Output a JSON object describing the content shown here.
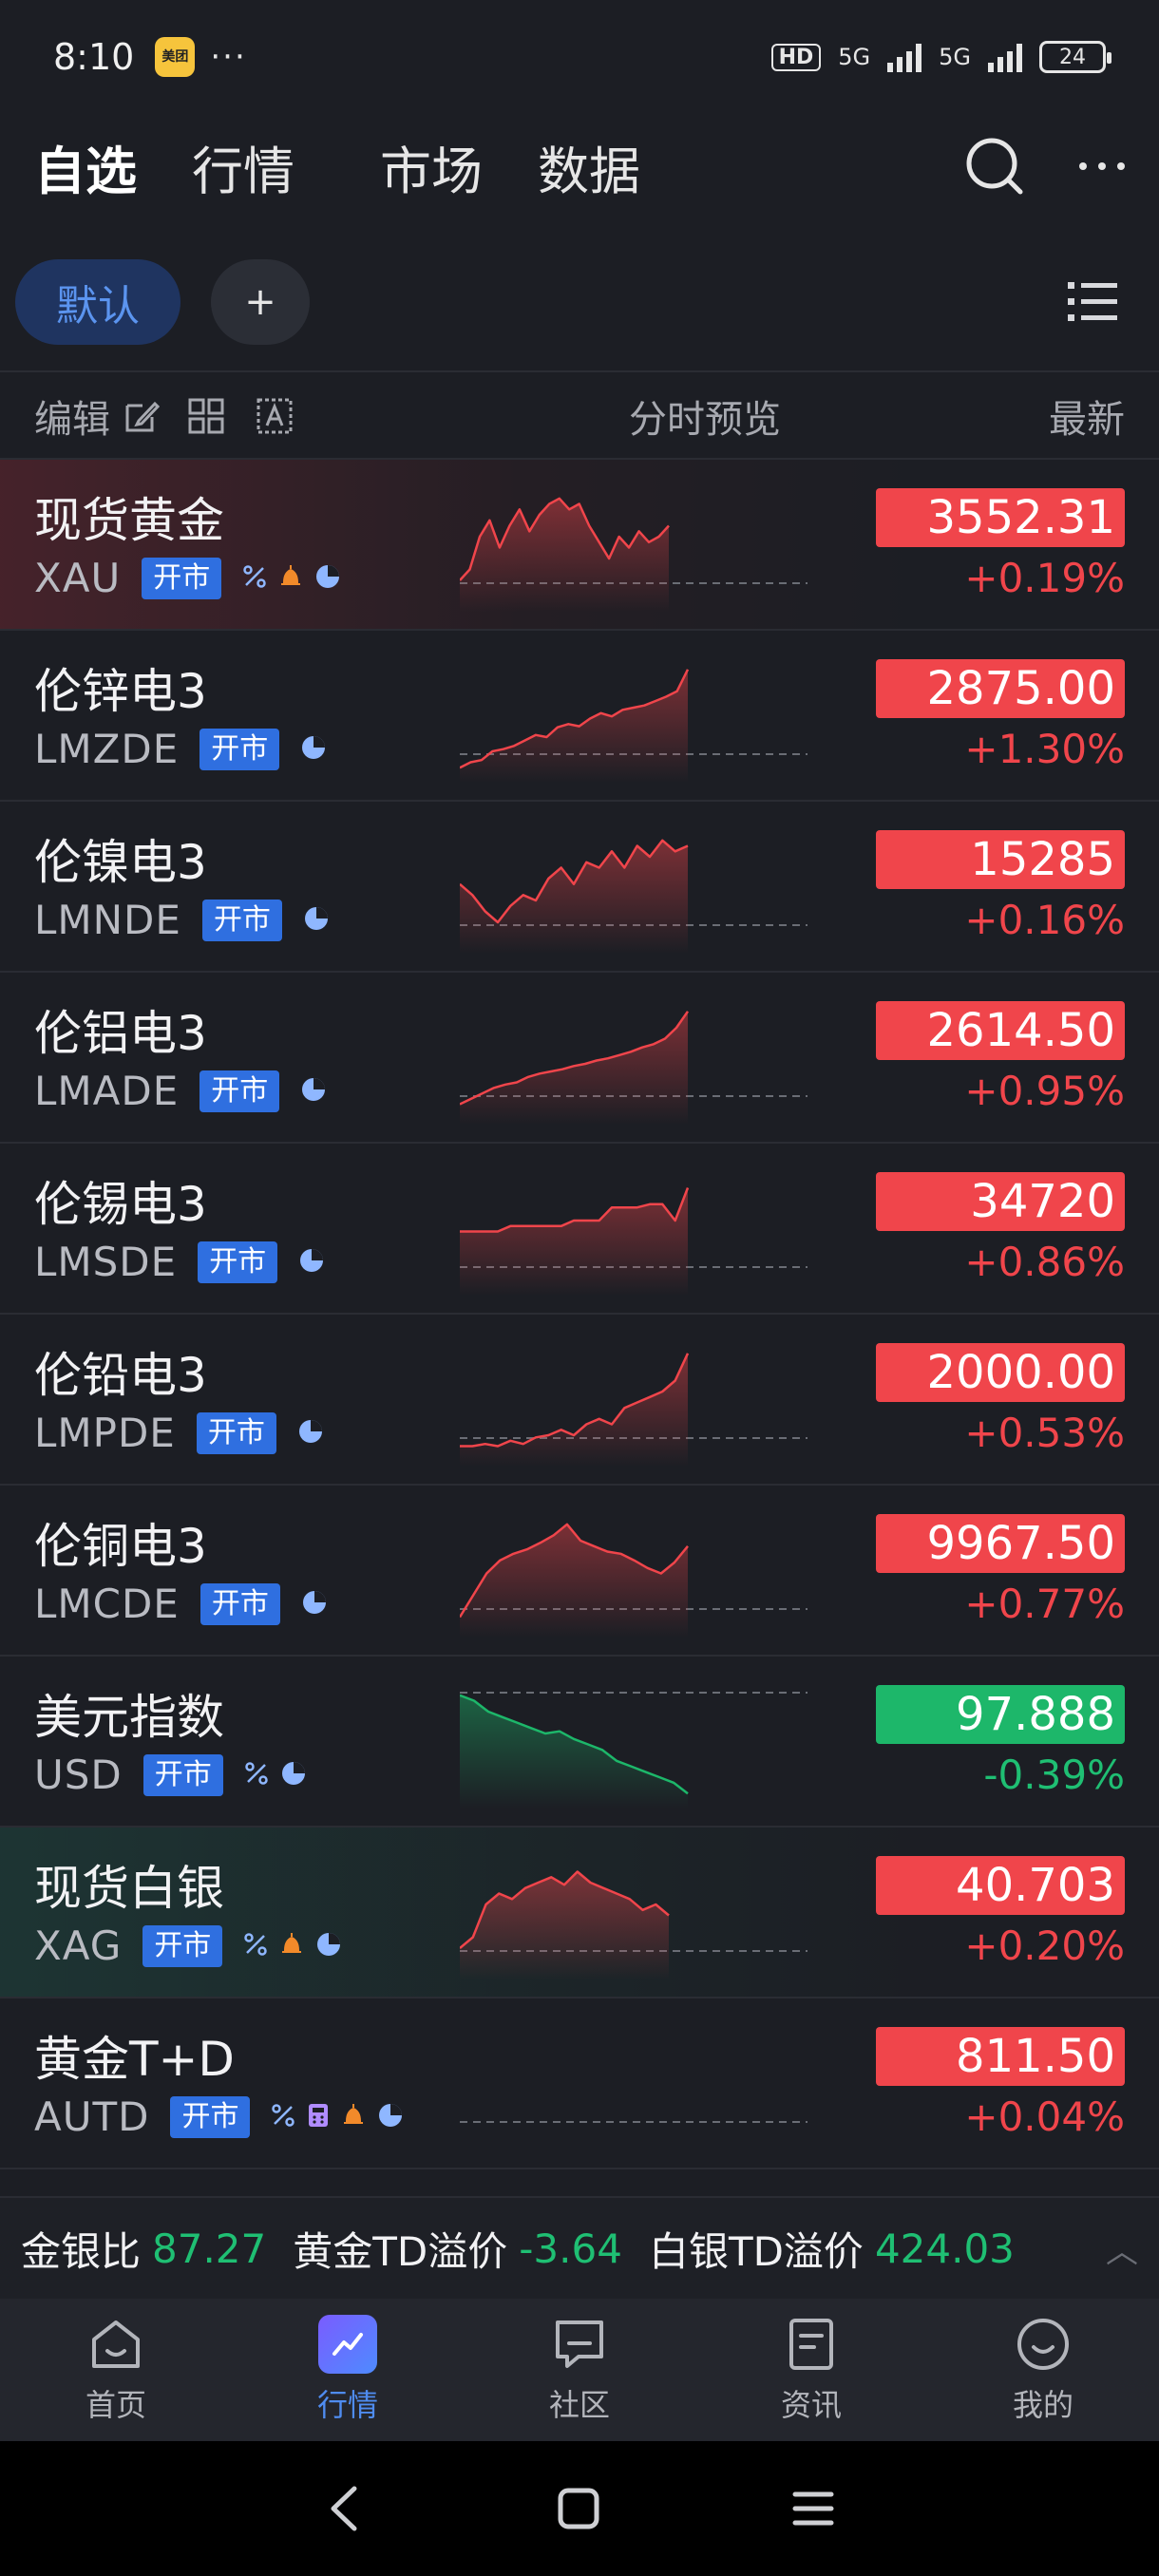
{
  "status": {
    "time": "8:10",
    "app_badge": "美团",
    "dots": "···",
    "hd": "HD",
    "net1": "5G",
    "net2": "5G",
    "battery": "24"
  },
  "topnav": {
    "tabs": [
      "自选",
      "行情",
      "市场",
      "数据"
    ]
  },
  "groups": {
    "active": "默认",
    "add": "+"
  },
  "header": {
    "edit": "编辑",
    "preview": "分时预览",
    "latest": "最新"
  },
  "colors": {
    "up": "#f0454b",
    "down": "#1db76a",
    "accent": "#2f6fe0"
  },
  "rows": [
    {
      "name": "现货黄金",
      "code": "XAU",
      "badge": "开市",
      "price": "3552.31",
      "change": "+0.19%",
      "dir": "up",
      "icons": [
        "percent-icon",
        "bell-icon",
        "pie-icon"
      ]
    },
    {
      "name": "伦锌电3",
      "code": "LMZDE",
      "badge": "开市",
      "price": "2875.00",
      "change": "+1.30%",
      "dir": "up",
      "icons": [
        "pie-icon"
      ]
    },
    {
      "name": "伦镍电3",
      "code": "LMNDE",
      "badge": "开市",
      "price": "15285",
      "change": "+0.16%",
      "dir": "up",
      "icons": [
        "pie-icon"
      ]
    },
    {
      "name": "伦铝电3",
      "code": "LMADE",
      "badge": "开市",
      "price": "2614.50",
      "change": "+0.95%",
      "dir": "up",
      "icons": [
        "pie-icon"
      ]
    },
    {
      "name": "伦锡电3",
      "code": "LMSDE",
      "badge": "开市",
      "price": "34720",
      "change": "+0.86%",
      "dir": "up",
      "icons": [
        "pie-icon"
      ]
    },
    {
      "name": "伦铅电3",
      "code": "LMPDE",
      "badge": "开市",
      "price": "2000.00",
      "change": "+0.53%",
      "dir": "up",
      "icons": [
        "pie-icon"
      ]
    },
    {
      "name": "伦铜电3",
      "code": "LMCDE",
      "badge": "开市",
      "price": "9967.50",
      "change": "+0.77%",
      "dir": "up",
      "icons": [
        "pie-icon"
      ]
    },
    {
      "name": "美元指数",
      "code": "USD",
      "badge": "开市",
      "price": "97.888",
      "change": "-0.39%",
      "dir": "down",
      "icons": [
        "percent-icon",
        "pie-icon"
      ]
    },
    {
      "name": "现货白银",
      "code": "XAG",
      "badge": "开市",
      "price": "40.703",
      "change": "+0.20%",
      "dir": "up",
      "icons": [
        "percent-icon",
        "bell-icon",
        "pie-icon"
      ]
    },
    {
      "name": "黄金T+D",
      "code": "AUTD",
      "badge": "开市",
      "price": "811.50",
      "change": "+0.04%",
      "dir": "up",
      "icons": [
        "percent-icon",
        "calc-icon",
        "bell-icon",
        "pie-icon"
      ]
    }
  ],
  "ticker": {
    "label1": "金银比",
    "value1": "87.27",
    "label2": "黄金TD溢价",
    "value2": "-3.64",
    "label3": "白银TD溢价",
    "value3": "424.03"
  },
  "bottomnav": {
    "items": [
      "首页",
      "行情",
      "社区",
      "资讯",
      "我的"
    ]
  }
}
